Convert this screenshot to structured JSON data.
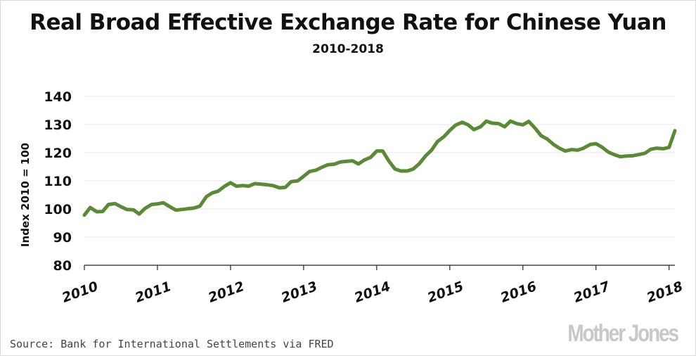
{
  "title": "Real Broad Effective Exchange Rate for Chinese Yuan",
  "subtitle": "2010-2018",
  "source": "Source: Bank for International Settlements via FRED",
  "logo": "Mother Jones",
  "colors": {
    "line": "#5a8a35",
    "grid": "#e6e6e6",
    "axis": "#222222",
    "text": "#111111"
  },
  "chart_data": {
    "type": "line",
    "title": "Real Broad Effective Exchange Rate for Chinese Yuan",
    "subtitle": "2010-2018",
    "ylabel": "Index 2010 = 100",
    "xlabel": "",
    "ylim": [
      80,
      140
    ],
    "yticks": [
      80,
      90,
      100,
      110,
      120,
      130,
      140
    ],
    "xlim": [
      2010,
      2018.08
    ],
    "xticks": [
      2010,
      2011,
      2012,
      2013,
      2014,
      2015,
      2016,
      2017,
      2018
    ],
    "xtick_labels": [
      "2010",
      "2011",
      "2012",
      "2013",
      "2014",
      "2015",
      "2016",
      "2017",
      "2018"
    ],
    "grid": "horizontal",
    "series": [
      {
        "color": "#5a8a35",
        "x": [
          2010.0,
          2010.08,
          2010.17,
          2010.25,
          2010.33,
          2010.42,
          2010.5,
          2010.58,
          2010.67,
          2010.75,
          2010.83,
          2010.92,
          2011.0,
          2011.08,
          2011.17,
          2011.25,
          2011.33,
          2011.42,
          2011.5,
          2011.58,
          2011.67,
          2011.75,
          2011.83,
          2011.92,
          2012.0,
          2012.08,
          2012.17,
          2012.25,
          2012.33,
          2012.42,
          2012.5,
          2012.58,
          2012.67,
          2012.75,
          2012.83,
          2012.92,
          2013.0,
          2013.08,
          2013.17,
          2013.25,
          2013.33,
          2013.42,
          2013.5,
          2013.58,
          2013.67,
          2013.75,
          2013.83,
          2013.92,
          2014.0,
          2014.08,
          2014.17,
          2014.25,
          2014.33,
          2014.42,
          2014.5,
          2014.58,
          2014.67,
          2014.75,
          2014.83,
          2014.92,
          2015.0,
          2015.08,
          2015.17,
          2015.25,
          2015.33,
          2015.42,
          2015.5,
          2015.58,
          2015.67,
          2015.75,
          2015.83,
          2015.92,
          2016.0,
          2016.08,
          2016.17,
          2016.25,
          2016.33,
          2016.42,
          2016.5,
          2016.58,
          2016.67,
          2016.75,
          2016.83,
          2016.92,
          2017.0,
          2017.08,
          2017.17,
          2017.25,
          2017.33,
          2017.42,
          2017.5,
          2017.58,
          2017.67,
          2017.75,
          2017.83,
          2017.92,
          2018.0,
          2018.08
        ],
        "values": [
          97.8,
          100.5,
          99.0,
          99.1,
          101.6,
          101.9,
          100.8,
          99.8,
          99.7,
          98.2,
          100.2,
          101.6,
          101.8,
          102.2,
          100.8,
          99.6,
          99.8,
          100.1,
          100.3,
          101.0,
          104.4,
          105.7,
          106.3,
          108.1,
          109.3,
          108.1,
          108.3,
          108.1,
          109.0,
          108.8,
          108.6,
          108.3,
          107.5,
          107.7,
          109.7,
          110.0,
          111.6,
          113.3,
          113.8,
          114.8,
          115.7,
          115.9,
          116.7,
          116.9,
          117.1,
          116.0,
          117.4,
          118.4,
          120.6,
          120.6,
          116.9,
          114.2,
          113.5,
          113.5,
          114.2,
          116.0,
          118.9,
          120.9,
          123.9,
          125.7,
          127.9,
          129.8,
          130.8,
          129.9,
          128.2,
          129.2,
          131.2,
          130.5,
          130.3,
          129.2,
          131.2,
          130.3,
          129.9,
          131.1,
          128.6,
          126.0,
          124.9,
          122.9,
          121.6,
          120.6,
          121.1,
          120.9,
          121.6,
          122.9,
          123.2,
          122.0,
          120.2,
          119.3,
          118.6,
          118.8,
          118.9,
          119.3,
          119.8,
          121.2,
          121.6,
          121.4,
          121.9,
          127.8
        ]
      }
    ]
  }
}
